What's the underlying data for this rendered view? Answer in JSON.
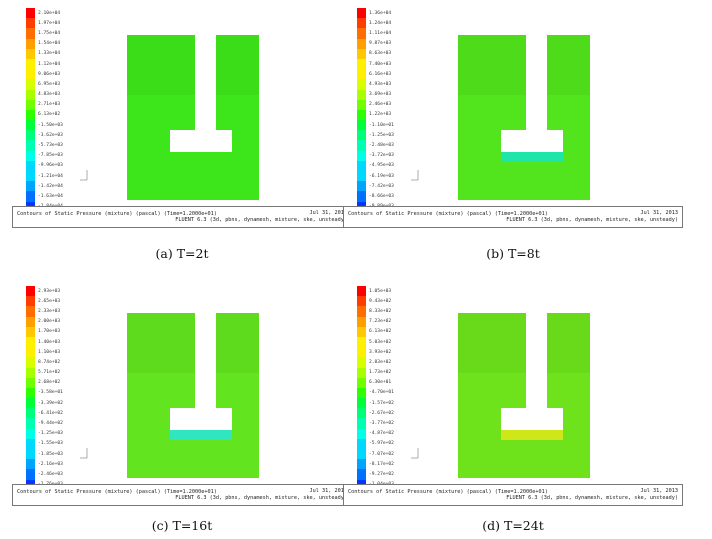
{
  "colorbar": [
    "#ff0000",
    "#ff3d00",
    "#ff6e00",
    "#ffa000",
    "#ffc800",
    "#fff000",
    "#d8ff00",
    "#a8ff00",
    "#70ff00",
    "#2cff00",
    "#00ff3a",
    "#00ff78",
    "#00ffb0",
    "#00ffe8",
    "#00d8ff",
    "#00a4ff",
    "#0070ff",
    "#0038ff",
    "#0000ff"
  ],
  "info": {
    "title": "Contours of Static Pressure (mixture) (pascal) (Time=1.2000e+01)",
    "date": "Jul 31, 2013",
    "solver": "FLUENT 6.3 (3d, pbns, dynamesh, mixture, ske, unsteady)"
  },
  "panels": [
    {
      "caption": "(a) T=2t",
      "legend": [
        "2.10e+04",
        "1.97e+04",
        "1.75e+04",
        "1.54e+04",
        "1.33e+04",
        "1.12e+04",
        "9.06e+03",
        "6.95e+03",
        "4.83e+03",
        "2.71e+03",
        "6.13e+02",
        "-1.50e+03",
        "-3.62e+03",
        "-5.73e+03",
        "-7.85e+03",
        "-9.96e+03",
        "-1.21e+04",
        "-1.42e+04",
        "-1.63e+04",
        "-1.84e+04",
        "-2.05e+04"
      ],
      "fill": "#3de61a",
      "pool": "#3de61a"
    },
    {
      "caption": "(b) T=8t",
      "legend": [
        "1.36e+04",
        "1.24e+04",
        "1.11e+04",
        "9.87e+03",
        "8.63e+03",
        "7.40e+03",
        "6.16e+03",
        "4.93e+03",
        "3.69e+03",
        "2.46e+03",
        "1.22e+03",
        "-1.10e+01",
        "-1.25e+03",
        "-2.48e+03",
        "-3.72e+03",
        "-4.95e+03",
        "-6.19e+03",
        "-7.42e+03",
        "-8.66e+03",
        "-9.89e+03",
        "-1.11e+04"
      ],
      "fill": "#52e41c",
      "pool": "#1fe6a8"
    },
    {
      "caption": "(c) T=16t",
      "legend": [
        "2.93e+03",
        "2.65e+03",
        "2.33e+03",
        "2.00e+03",
        "1.70e+03",
        "1.40e+03",
        "1.10e+03",
        "8.74e+02",
        "5.71e+02",
        "2.68e+02",
        "-3.58e+01",
        "-3.39e+02",
        "-6.41e+02",
        "-9.44e+02",
        "-1.25e+03",
        "-1.55e+03",
        "-1.85e+03",
        "-2.16e+03",
        "-2.46e+03",
        "-2.76e+03",
        "-3.06e+03"
      ],
      "fill": "#62e41e",
      "pool": "#2fe6c0"
    },
    {
      "caption": "(d) T=24t",
      "legend": [
        "1.05e+03",
        "9.43e+02",
        "8.33e+02",
        "7.23e+02",
        "6.13e+02",
        "5.03e+02",
        "3.93e+02",
        "2.83e+02",
        "1.73e+02",
        "6.30e+01",
        "-4.70e+01",
        "-1.57e+02",
        "-2.67e+02",
        "-3.77e+02",
        "-4.87e+02",
        "-5.97e+02",
        "-7.07e+02",
        "-8.17e+02",
        "-9.27e+02",
        "-1.04e+03",
        "-1.15e+03"
      ],
      "fill": "#6ee31c",
      "pool": "#cfe619"
    }
  ]
}
